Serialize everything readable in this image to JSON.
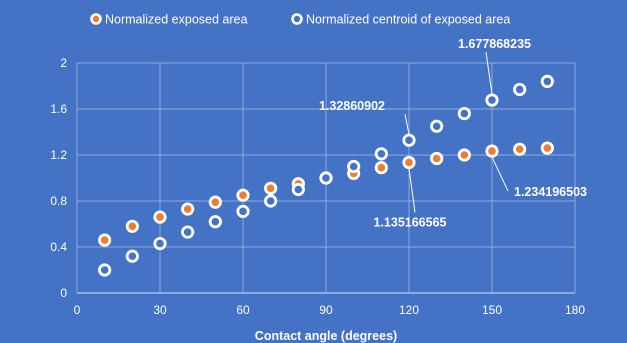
{
  "colors": {
    "background": "#4472C4",
    "grid": "#8FAADC",
    "text": "#FFFFFF",
    "series_area": "#ED7D31"
  },
  "chart_data": {
    "type": "scatter",
    "title": "",
    "xlabel": "Contact angle (degrees)",
    "ylabel": "",
    "xlim": [
      0,
      180
    ],
    "ylim": [
      0,
      2
    ],
    "xticks": [
      0,
      30,
      60,
      90,
      120,
      150,
      180
    ],
    "yticks": [
      0,
      0.4,
      0.8,
      1.2,
      1.6,
      2
    ],
    "xtick_labels": [
      "0",
      "30",
      "60",
      "90",
      "120",
      "150",
      "180"
    ],
    "ytick_labels": [
      "0",
      "0.4",
      "0.8",
      "1.2",
      "1.6",
      "2"
    ],
    "grid": true,
    "legend_position": "top",
    "series": [
      {
        "name": "Normalized exposed area",
        "marker": "white-ring-orange-fill",
        "x": [
          10,
          20,
          30,
          40,
          50,
          60,
          70,
          80,
          90,
          100,
          110,
          120,
          130,
          140,
          150,
          160,
          170
        ],
        "y": [
          0.46,
          0.58,
          0.66,
          0.73,
          0.79,
          0.85,
          0.91,
          0.95,
          1.0,
          1.04,
          1.09,
          1.135166565,
          1.17,
          1.2,
          1.234196503,
          1.25,
          1.26
        ]
      },
      {
        "name": "Normalized centroid of exposed area",
        "marker": "white-ring-blue-fill",
        "x": [
          10,
          20,
          30,
          40,
          50,
          60,
          70,
          80,
          90,
          100,
          110,
          120,
          130,
          140,
          150,
          160,
          170
        ],
        "y": [
          0.2,
          0.32,
          0.43,
          0.53,
          0.62,
          0.71,
          0.8,
          0.9,
          1.0,
          1.1,
          1.21,
          1.32860902,
          1.45,
          1.56,
          1.677868235,
          1.77,
          1.84
        ]
      }
    ],
    "annotations": [
      {
        "text": "1.677868235",
        "series": 1,
        "point": 14,
        "label_anchor": "start"
      },
      {
        "text": "1.32860902",
        "series": 1,
        "point": 11,
        "label_anchor": "end"
      },
      {
        "text": "1.135166565",
        "series": 0,
        "point": 11,
        "label_anchor": "middle"
      },
      {
        "text": "1.234196503",
        "series": 0,
        "point": 14,
        "label_anchor": "start"
      }
    ]
  }
}
